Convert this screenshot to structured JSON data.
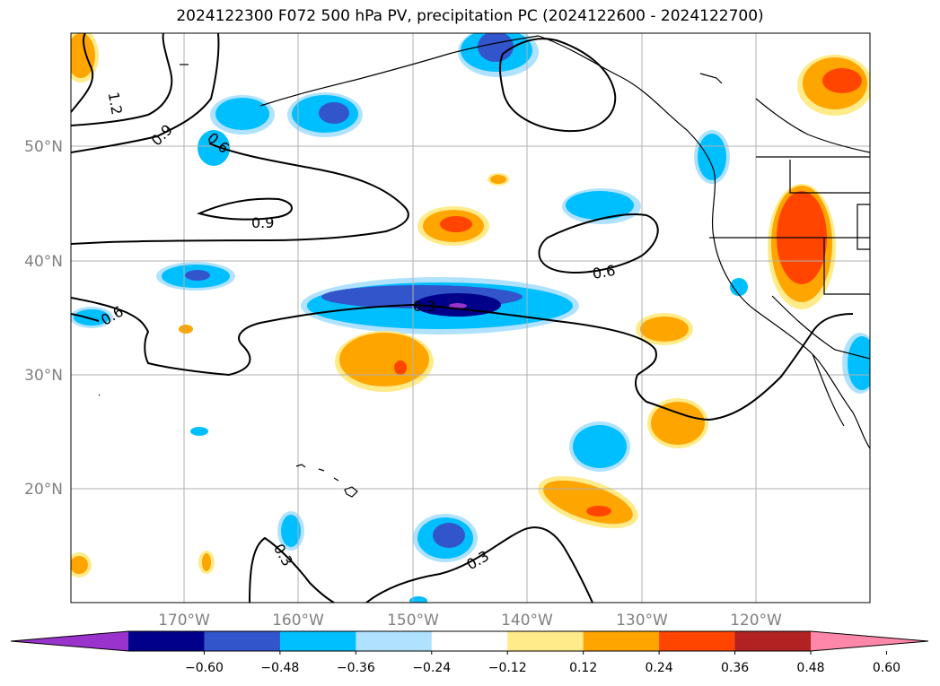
{
  "title": "2024122300 F072 500 hPa PV, precipitation PC (2024122600 - 2024122700)",
  "lat_labels": [
    "50°N",
    "40°N",
    "30°N",
    "20°N"
  ],
  "lon_labels": [
    "170°W",
    "160°W",
    "150°W",
    "140°W",
    "130°W",
    "120°W"
  ],
  "contour_labels": [
    "1.2",
    "0.9",
    "0.6",
    "0.9",
    "0.6",
    "0.6",
    "0.3",
    "0.3",
    "0.3"
  ],
  "colorbar": {
    "ticks": [
      "−0.60",
      "−0.48",
      "−0.36",
      "−0.24",
      "−0.12",
      "0.12",
      "0.24",
      "0.36",
      "0.48",
      "0.60"
    ],
    "colors": [
      "#9933cc",
      "#00008b",
      "#3355cc",
      "#00bfff",
      "#b0e2ff",
      "#ffffff",
      "#ffeb8a",
      "#ffa500",
      "#ff4500",
      "#b22222",
      "#ff88aa"
    ]
  }
}
